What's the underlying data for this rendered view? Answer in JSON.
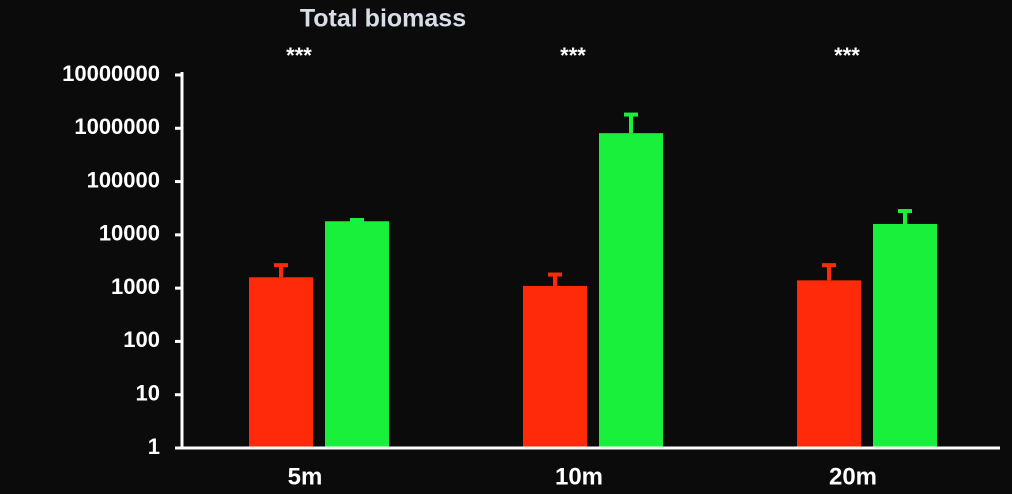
{
  "chart_data": {
    "type": "bar",
    "title": "Total biomass",
    "categories": [
      "5m",
      "10m",
      "20m"
    ],
    "annotations": [
      "***",
      "***",
      "***"
    ],
    "series": [
      {
        "color": "#ff2a0a",
        "values": [
          1600,
          1100,
          1400
        ],
        "errors": [
          1100,
          700,
          1300
        ]
      },
      {
        "color": "#19f03c",
        "values": [
          18000,
          810000,
          16000
        ],
        "errors": [
          1000,
          1000000,
          12000
        ]
      }
    ],
    "log_scale": true,
    "ylim": [
      1,
      10000000
    ],
    "yticks": [
      1,
      10,
      100,
      1000,
      10000,
      100000,
      1000000,
      10000000
    ],
    "grid": false
  }
}
